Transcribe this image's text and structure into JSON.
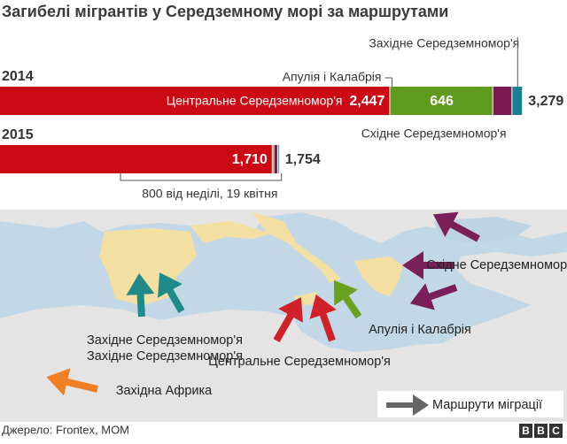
{
  "chart_data": {
    "type": "stacked-bar",
    "title": "Загибелі мігрантів у Середземному морі за маршрутами",
    "categories": [
      "2014",
      "2015"
    ],
    "series": [
      {
        "name": "Центральне Середземномор'я",
        "color": "#cc0a16",
        "values": [
          2447,
          1710
        ],
        "value_labels": [
          "2,447",
          "1,710"
        ]
      },
      {
        "name": "Апулія і Калабрія",
        "color": "#5e9a1b",
        "values": [
          646,
          10
        ],
        "value_labels": [
          "646",
          null
        ]
      },
      {
        "name": "Східне Середземномор'я",
        "color": "#7a1650",
        "values": [
          120,
          24
        ]
      },
      {
        "name": "Західне Середземномор'я",
        "color": "#1a7f8f",
        "values": [
          66,
          10
        ]
      }
    ],
    "totals": [
      {
        "value": 3279,
        "label": "3,279"
      },
      {
        "value": 1754,
        "label": "1,754"
      }
    ],
    "annotation": "800 від неділі, 19 квітня",
    "map": {
      "labels": [
        "Західне Середземномор'я",
        "Центральне Середземномор'я",
        "Апулія і Калабрія",
        "Східне Середземномор'я",
        "Західна Африка"
      ],
      "legend": "Маршрути міграції"
    },
    "source": "Джерело:  Frontex, MOM",
    "logo": [
      "B",
      "B",
      "C"
    ]
  }
}
